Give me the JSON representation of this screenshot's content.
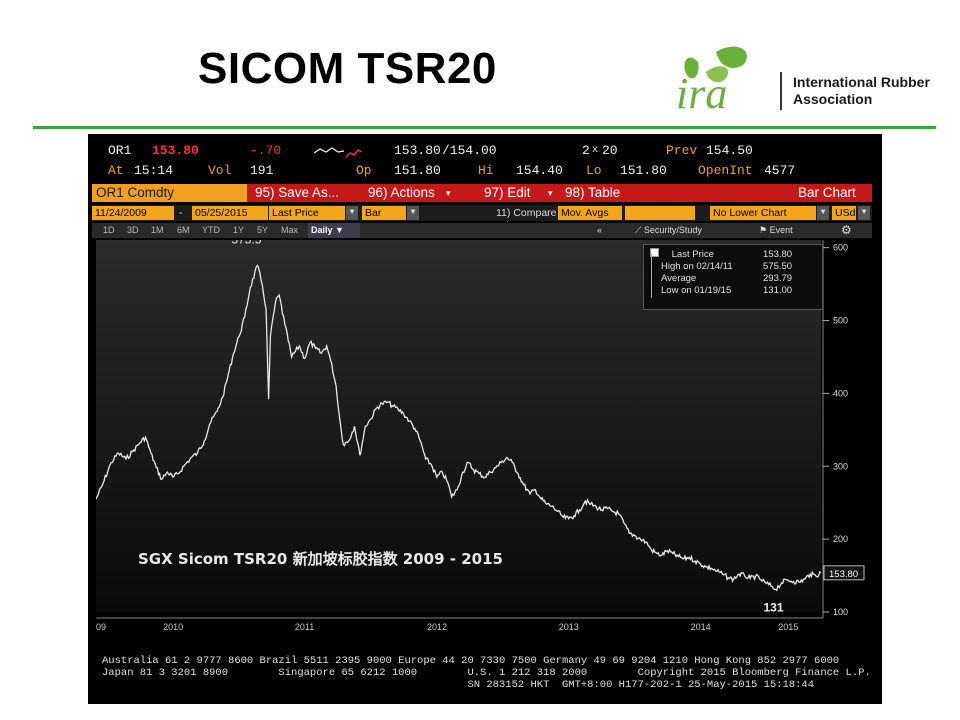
{
  "slide": {
    "title": "SICOM TSR20"
  },
  "logo": {
    "mark": "ira",
    "line1": "International Rubber",
    "line2": "Association"
  },
  "quote": {
    "ticker": "OR1",
    "price": "153.80",
    "change": "-.70",
    "bid_ask": "153.80",
    "ask": "/154.00",
    "size": "2",
    "size2": "20",
    "prev_label": "Prev",
    "prev": "154.50",
    "at_label": "At",
    "time": "15:14",
    "vol_label": "Vol",
    "vol": "191",
    "op_label": "Op",
    "open": "151.80",
    "hi_label": "Hi",
    "high": "154.40",
    "lo_label": "Lo",
    "low": "151.80",
    "oi_label": "OpenInt",
    "open_interest": "4577"
  },
  "menu": {
    "ticker_box": "OR1 Comdty",
    "items": [
      "95) Save As...",
      "96) Actions",
      "97) Edit",
      "98) Table"
    ],
    "right": "Bar Chart"
  },
  "options": {
    "start": "11/24/2009",
    "sep": "-",
    "end": "05/25/2015",
    "field": "Last Price",
    "type": "Bar",
    "compare_label": "11) Compare",
    "compare": "Mov. Avgs",
    "lower": "No Lower Chart",
    "currency": "USd"
  },
  "tabs": {
    "periods": [
      "1D",
      "3D",
      "1M",
      "6M",
      "YTD",
      "1Y",
      "5Y",
      "Max",
      "Daily ▼"
    ],
    "back": "«",
    "security": "Security/Study",
    "event": "Event",
    "gear": "gear-icon"
  },
  "legend": {
    "rows": [
      {
        "label": "Last Price",
        "value": "153.80"
      },
      {
        "label": "High on 02/14/11",
        "value": "575.50"
      },
      {
        "label": "Average",
        "value": "293.79"
      },
      {
        "label": "Low on 01/19/15",
        "value": "131.00"
      }
    ]
  },
  "annotations": {
    "high": "575.5",
    "low": "131",
    "last": "153.80"
  },
  "watermark": "SGX Sicom TSR20 新加坡标胶指数 2009 - 2015",
  "footer": {
    "line1": "Australia 61 2 9777 8600 Brazil 5511 2395 9000 Europe 44 20 7330 7500 Germany 49 69 9204 1210 Hong Kong 852 2977 6000",
    "line2": "Japan 81 3 3201 8900        Singapore 65 6212 1000        U.S. 1 212 318 2000        Copyright 2015 Bloomberg Finance L.P.",
    "line3": "                                                          SN 283152 HKT  GMT+8:00 H177-202-1 25-May-2015 15:18:44"
  },
  "colors": {
    "accent_rule": "#3ea23e",
    "bg": "#000000",
    "amber": "#f2a400",
    "red": "#ff3030",
    "menu": "#c51818",
    "logo_green": "#6ab03a"
  },
  "chart_data": {
    "type": "line",
    "title": "SGX Sicom TSR20 新加坡标胶指数 2009 - 2015",
    "xlabel": "",
    "ylabel": "",
    "x_ticks": [
      "09",
      "2010",
      "2011",
      "2012",
      "2013",
      "2014",
      "2015"
    ],
    "y_ticks": [
      100,
      200,
      300,
      400,
      500,
      600
    ],
    "ylim": [
      100,
      605
    ],
    "xlim": [
      "2009-11-24",
      "2015-05-25"
    ],
    "y_axis_position": "right",
    "legend_position": "top-right",
    "grid": false,
    "series": [
      {
        "name": "Last Price",
        "color": "#e8e8e8",
        "points": [
          [
            "2009-11-24",
            255
          ],
          [
            "2009-12-10",
            272
          ],
          [
            "2010-01-05",
            305
          ],
          [
            "2010-01-25",
            318
          ],
          [
            "2010-02-15",
            310
          ],
          [
            "2010-03-05",
            320
          ],
          [
            "2010-03-25",
            332
          ],
          [
            "2010-04-10",
            340
          ],
          [
            "2010-04-25",
            318
          ],
          [
            "2010-05-10",
            298
          ],
          [
            "2010-05-25",
            282
          ],
          [
            "2010-06-10",
            292
          ],
          [
            "2010-06-25",
            285
          ],
          [
            "2010-07-10",
            290
          ],
          [
            "2010-07-25",
            300
          ],
          [
            "2010-08-15",
            312
          ],
          [
            "2010-09-01",
            318
          ],
          [
            "2010-09-20",
            335
          ],
          [
            "2010-10-05",
            358
          ],
          [
            "2010-10-25",
            375
          ],
          [
            "2010-11-10",
            395
          ],
          [
            "2010-11-25",
            425
          ],
          [
            "2010-12-10",
            455
          ],
          [
            "2010-12-25",
            478
          ],
          [
            "2011-01-10",
            505
          ],
          [
            "2011-01-25",
            545
          ],
          [
            "2011-02-14",
            575.5
          ],
          [
            "2011-02-28",
            548
          ],
          [
            "2011-03-10",
            515
          ],
          [
            "2011-03-17",
            392
          ],
          [
            "2011-03-22",
            478
          ],
          [
            "2011-04-05",
            525
          ],
          [
            "2011-04-15",
            535
          ],
          [
            "2011-05-01",
            495
          ],
          [
            "2011-05-20",
            450
          ],
          [
            "2011-06-10",
            465
          ],
          [
            "2011-06-25",
            448
          ],
          [
            "2011-07-10",
            470
          ],
          [
            "2011-07-25",
            462
          ],
          [
            "2011-08-10",
            455
          ],
          [
            "2011-08-25",
            465
          ],
          [
            "2011-09-05",
            445
          ],
          [
            "2011-09-20",
            410
          ],
          [
            "2011-09-30",
            365
          ],
          [
            "2011-10-10",
            330
          ],
          [
            "2011-10-25",
            335
          ],
          [
            "2011-11-10",
            355
          ],
          [
            "2011-11-25",
            315
          ],
          [
            "2011-12-10",
            355
          ],
          [
            "2011-12-25",
            365
          ],
          [
            "2012-01-10",
            380
          ],
          [
            "2012-01-25",
            386
          ],
          [
            "2012-02-10",
            388
          ],
          [
            "2012-02-25",
            382
          ],
          [
            "2012-03-10",
            378
          ],
          [
            "2012-03-25",
            372
          ],
          [
            "2012-04-10",
            362
          ],
          [
            "2012-04-25",
            352
          ],
          [
            "2012-05-10",
            335
          ],
          [
            "2012-05-25",
            310
          ],
          [
            "2012-06-10",
            302
          ],
          [
            "2012-06-25",
            285
          ],
          [
            "2012-07-10",
            292
          ],
          [
            "2012-07-25",
            278
          ],
          [
            "2012-08-05",
            258
          ],
          [
            "2012-08-20",
            268
          ],
          [
            "2012-09-05",
            292
          ],
          [
            "2012-09-20",
            305
          ],
          [
            "2012-10-05",
            295
          ],
          [
            "2012-10-20",
            290
          ],
          [
            "2012-11-05",
            285
          ],
          [
            "2012-11-20",
            292
          ],
          [
            "2012-12-05",
            298
          ],
          [
            "2012-12-20",
            305
          ],
          [
            "2013-01-05",
            312
          ],
          [
            "2013-01-20",
            305
          ],
          [
            "2013-02-05",
            290
          ],
          [
            "2013-02-20",
            275
          ],
          [
            "2013-03-10",
            262
          ],
          [
            "2013-03-25",
            268
          ],
          [
            "2013-04-10",
            255
          ],
          [
            "2013-04-25",
            248
          ],
          [
            "2013-05-10",
            245
          ],
          [
            "2013-05-25",
            238
          ],
          [
            "2013-06-10",
            230
          ],
          [
            "2013-06-25",
            228
          ],
          [
            "2013-07-10",
            232
          ],
          [
            "2013-07-25",
            240
          ],
          [
            "2013-08-10",
            252
          ],
          [
            "2013-08-25",
            248
          ],
          [
            "2013-09-10",
            244
          ],
          [
            "2013-09-25",
            240
          ],
          [
            "2013-10-10",
            242
          ],
          [
            "2013-10-25",
            238
          ],
          [
            "2013-11-10",
            235
          ],
          [
            "2013-11-25",
            222
          ],
          [
            "2013-12-10",
            208
          ],
          [
            "2013-12-25",
            205
          ],
          [
            "2014-01-10",
            200
          ],
          [
            "2014-01-25",
            196
          ],
          [
            "2014-02-10",
            185
          ],
          [
            "2014-02-25",
            180
          ],
          [
            "2014-03-10",
            178
          ],
          [
            "2014-03-25",
            184
          ],
          [
            "2014-04-10",
            180
          ],
          [
            "2014-04-25",
            176
          ],
          [
            "2014-05-10",
            173
          ],
          [
            "2014-05-25",
            175
          ],
          [
            "2014-06-10",
            170
          ],
          [
            "2014-06-25",
            166
          ],
          [
            "2014-07-10",
            162
          ],
          [
            "2014-07-25",
            160
          ],
          [
            "2014-08-10",
            156
          ],
          [
            "2014-08-25",
            152
          ],
          [
            "2014-09-10",
            147
          ],
          [
            "2014-09-25",
            145
          ],
          [
            "2014-10-10",
            152
          ],
          [
            "2014-10-25",
            150
          ],
          [
            "2014-11-10",
            146
          ],
          [
            "2014-11-25",
            149
          ],
          [
            "2014-12-10",
            144
          ],
          [
            "2014-12-25",
            139
          ],
          [
            "2015-01-10",
            135
          ],
          [
            "2015-01-19",
            131
          ],
          [
            "2015-02-05",
            140
          ],
          [
            "2015-02-20",
            144
          ],
          [
            "2015-03-10",
            142
          ],
          [
            "2015-03-25",
            141
          ],
          [
            "2015-04-10",
            145
          ],
          [
            "2015-04-25",
            152
          ],
          [
            "2015-05-10",
            150
          ],
          [
            "2015-05-25",
            153.8
          ]
        ]
      }
    ]
  }
}
